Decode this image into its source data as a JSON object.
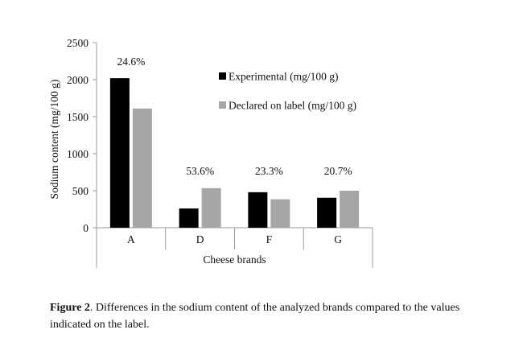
{
  "chart_data": {
    "type": "bar",
    "title": "",
    "xlabel": "Cheese brands",
    "ylabel": "Sodium content (mg/100 g)",
    "ylim": [
      0,
      2500
    ],
    "yticks": [
      0,
      500,
      1000,
      1500,
      2000,
      2500
    ],
    "categories": [
      "A",
      "D",
      "F",
      "G"
    ],
    "series": [
      {
        "name": "Experimental (mg/100 g)",
        "color": "#000000",
        "values": [
          2020,
          260,
          480,
          405
        ]
      },
      {
        "name": "Declared on label (mg/100 g)",
        "color": "#a6a6a6",
        "values": [
          1610,
          535,
          385,
          500
        ]
      }
    ],
    "annotations": [
      "24.6%",
      "53.6%",
      "23.3%",
      "20.7%"
    ],
    "legend_position": "top-right",
    "grid": false
  },
  "caption": {
    "label": "Figure 2",
    "text": ". Differences in the sodium content of the analyzed brands compared to the values indicated on the label."
  }
}
